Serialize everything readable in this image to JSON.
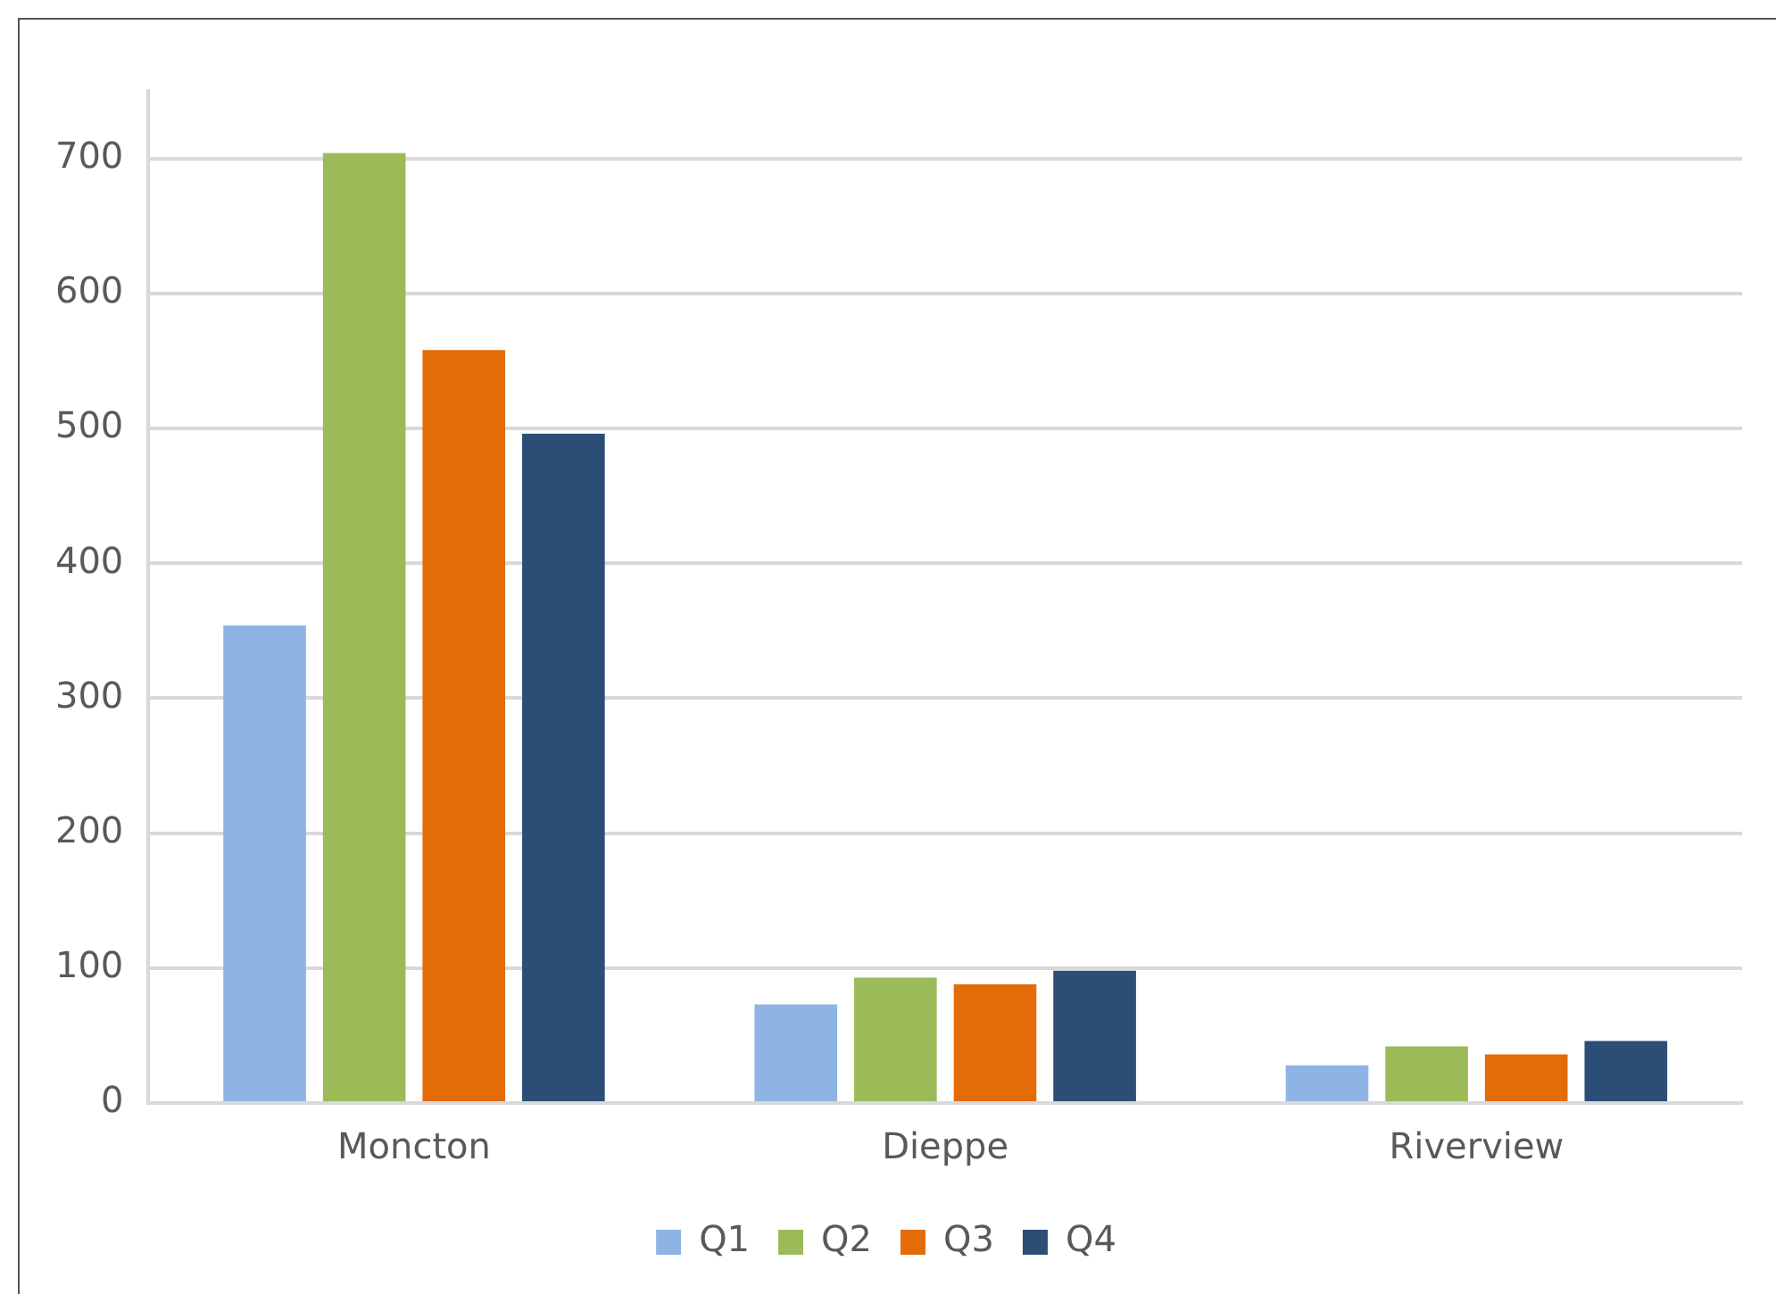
{
  "chart_data": {
    "type": "bar",
    "categories": [
      "Moncton",
      "Dieppe",
      "Riverview"
    ],
    "series": [
      {
        "name": "Q1",
        "color": "#8eb4e3",
        "values": [
          354,
          73,
          28
        ]
      },
      {
        "name": "Q2",
        "color": "#9bbb59",
        "values": [
          704,
          93,
          42
        ]
      },
      {
        "name": "Q3",
        "color": "#e36c09",
        "values": [
          558,
          88,
          36
        ]
      },
      {
        "name": "Q4",
        "color": "#2c4d75",
        "values": [
          496,
          98,
          46
        ]
      }
    ],
    "ylim": [
      0,
      750
    ],
    "yticks": [
      0,
      100,
      200,
      300,
      400,
      500,
      600,
      700
    ],
    "grid": "y",
    "legend": "bottom"
  }
}
